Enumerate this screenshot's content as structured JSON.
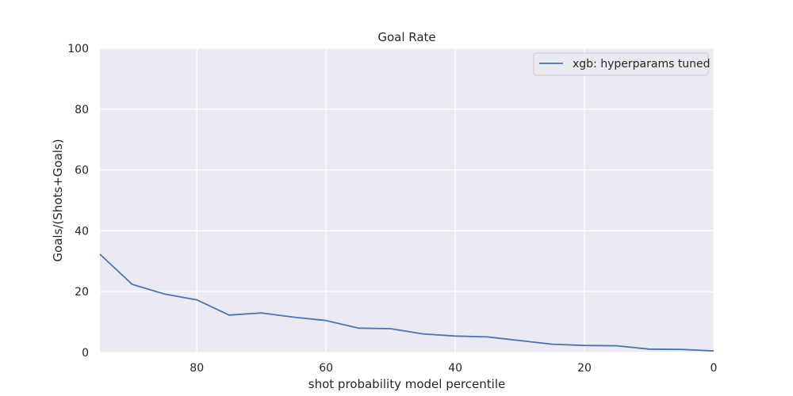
{
  "chart_data": {
    "type": "line",
    "title": "Goal Rate",
    "xlabel": "shot probability model percentile",
    "ylabel": "Goals/(Shots+Goals)",
    "xlim": [
      95,
      0
    ],
    "ylim": [
      0,
      100
    ],
    "x_inverted": true,
    "xticks": [
      80,
      60,
      40,
      20,
      0
    ],
    "yticks": [
      0,
      20,
      40,
      60,
      80,
      100
    ],
    "grid": true,
    "legend_position": "top-right",
    "series": [
      {
        "name": "xgb: hyperparams tuned",
        "color": "#4c72b0",
        "x": [
          95,
          90,
          85,
          80,
          75,
          70,
          65,
          60,
          55,
          50,
          45,
          40,
          35,
          30,
          25,
          20,
          15,
          10,
          5,
          0
        ],
        "y": [
          32.3,
          22.4,
          19.2,
          17.3,
          12.3,
          13.0,
          11.6,
          10.5,
          8.0,
          7.8,
          6.1,
          5.4,
          5.1,
          3.9,
          2.7,
          2.3,
          2.2,
          1.1,
          1.0,
          0.5
        ]
      }
    ],
    "colors": {
      "plot_background": "#eaeaf2",
      "grid": "#ffffff"
    }
  }
}
